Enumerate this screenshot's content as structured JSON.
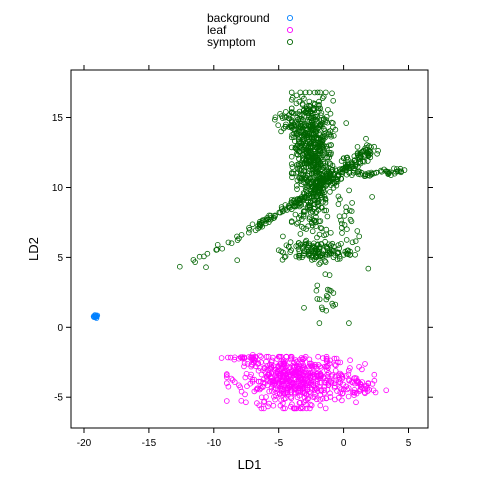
{
  "chart_data": {
    "type": "scatter",
    "title": "",
    "xlabel": "LD1",
    "ylabel": "LD2",
    "xlim": [
      -21.0,
      6.5
    ],
    "ylim": [
      -7.2,
      18.4
    ],
    "xticks": [
      -20,
      -15,
      -10,
      -5,
      0,
      5
    ],
    "yticks": [
      -5,
      0,
      5,
      10,
      15
    ],
    "grid": false,
    "marker": "open-circle",
    "legend": {
      "placement": "top-center",
      "columns": 1
    },
    "series": [
      {
        "name": "background",
        "color": "#0080ff",
        "clusters": [
          {
            "shape": "blob",
            "cx": -19.1,
            "cy": 0.8,
            "sx": 0.07,
            "sy": 0.06,
            "n": 14
          }
        ]
      },
      {
        "name": "leaf",
        "color": "#ff00ff",
        "clusters": [
          {
            "shape": "blob",
            "cx": -3.6,
            "cy": -3.7,
            "sx": 2.0,
            "sy": 0.9,
            "n": 560,
            "xlim": [
              -9.0,
              2.6
            ],
            "ylim": [
              -5.8,
              -2.1
            ]
          },
          {
            "shape": "blob",
            "cx": -7.6,
            "cy": -2.2,
            "sx": 0.7,
            "sy": 0.08,
            "n": 24
          },
          {
            "shape": "blob",
            "cx": 1.2,
            "cy": -4.3,
            "sx": 0.7,
            "sy": 0.5,
            "n": 40
          }
        ]
      },
      {
        "name": "symptom",
        "color": "#006400",
        "clusters": [
          {
            "shape": "blob",
            "cx": -2.3,
            "cy": 11.5,
            "sx": 0.7,
            "sy": 2.6,
            "n": 520,
            "xlim": [
              -4.0,
              -0.4
            ],
            "ylim": [
              5.0,
              16.8
            ]
          },
          {
            "shape": "blob",
            "cx": -2.8,
            "cy": 13.8,
            "sx": 0.8,
            "sy": 1.2,
            "n": 160,
            "xlim": [
              -4.0,
              -1.0
            ],
            "ylim": [
              11.0,
              16.5
            ]
          },
          {
            "shape": "blob",
            "cx": -2.1,
            "cy": 5.4,
            "sx": 1.3,
            "sy": 0.35,
            "n": 120,
            "xlim": [
              -5.0,
              0.5
            ],
            "ylim": [
              4.5,
              6.5
            ]
          },
          {
            "shape": "line",
            "from": [
              -7.0,
              7.0
            ],
            "to": [
              -3.0,
              9.3
            ],
            "n": 70,
            "noise": 0.15
          },
          {
            "shape": "line",
            "from": [
              -12.8,
              4.1
            ],
            "to": [
              -7.0,
              7.0
            ],
            "n": 16,
            "noise": 0.12
          },
          {
            "shape": "line",
            "from": [
              -2.0,
              10.0
            ],
            "to": [
              2.2,
              12.8
            ],
            "n": 160,
            "noise": 0.3
          },
          {
            "shape": "line",
            "from": [
              0.0,
              10.9
            ],
            "to": [
              4.8,
              11.2
            ],
            "n": 45,
            "noise": 0.12
          },
          {
            "shape": "blob",
            "cx": -3.8,
            "cy": 14.5,
            "sx": 0.6,
            "sy": 0.5,
            "n": 40
          },
          {
            "shape": "blob",
            "cx": -1.5,
            "cy": 2.3,
            "sx": 0.6,
            "sy": 1.1,
            "n": 22,
            "ylim": [
              0.3,
              4.8
            ]
          },
          {
            "shape": "blob",
            "cx": 0.3,
            "cy": 7.8,
            "sx": 0.5,
            "sy": 1.2,
            "n": 25
          },
          {
            "shape": "points",
            "xy": [
              [
                -8.2,
                4.8
              ],
              [
                1.2,
                6.5
              ],
              [
                1.9,
                4.2
              ],
              [
                -0.8,
                16.2
              ],
              [
                0.2,
                14.6
              ],
              [
                -9.7,
                5.9
              ],
              [
                -10.6,
                4.3
              ]
            ]
          }
        ]
      }
    ]
  }
}
